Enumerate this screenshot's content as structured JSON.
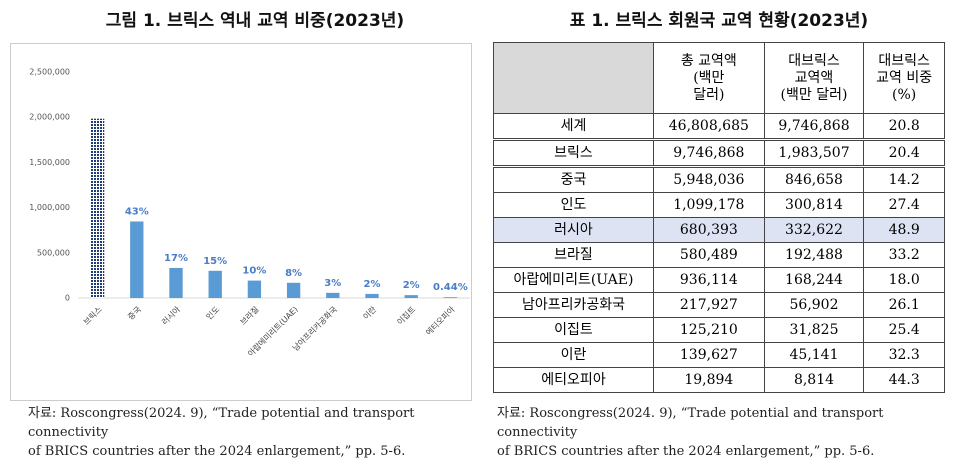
{
  "chart_data": {
    "type": "bar",
    "title": "그림 1. 브릭스 역내 교역 비중(2023년)",
    "categories": [
      "브릭스",
      "중국",
      "러시아",
      "인도",
      "브라질",
      "아랍에미리트(UAE)",
      "남아프리카공화국",
      "이란",
      "이집트",
      "에티오피아"
    ],
    "values": [
      1983507,
      846658,
      332622,
      300814,
      192488,
      168244,
      56902,
      45141,
      31825,
      8814
    ],
    "share_labels": [
      null,
      "43%",
      "17%",
      "15%",
      "10%",
      "8%",
      "3%",
      "2%",
      "2%",
      "0.44%"
    ],
    "color": "#5b9bd5",
    "first_bar_color": "#1f3c74",
    "ylim": [
      0,
      2500000
    ],
    "yticks": [
      0,
      {
        "value": 500000,
        "label": "500,000"
      },
      {
        "value": 1000000,
        "label": "1,000,000"
      },
      {
        "value": 1500000,
        "label": "1,500,000"
      },
      {
        "value": 2000000,
        "label": "2,000,000"
      },
      {
        "value": 2500000,
        "label": "2,500,000"
      }
    ],
    "grid": false,
    "source": "자료: Roscongress(2024. 9), “Trade potential and transport connectivity\nof BRICS countries after the 2024 enlargement,” pp. 5-6."
  },
  "table": {
    "title": "표 1. 브릭스 회원국 교역 현황(2023년)",
    "header": [
      "",
      "총 교역액\n(백만\n달러)",
      "대브릭스\n교역액\n(백만 달러)",
      "대브릭스\n교역 비중\n(%)"
    ],
    "rows": [
      [
        "세계",
        "46,808,685",
        "9,746,868",
        "20.8"
      ],
      [
        "브릭스",
        "9,746,868",
        "1,983,507",
        "20.4"
      ],
      [
        "중국",
        "5,948,036",
        "846,658",
        "14.2"
      ],
      [
        "인도",
        "1,099,178",
        "300,814",
        "27.4"
      ],
      [
        "러시아",
        "680,393",
        "332,622",
        "48.9"
      ],
      [
        "브라질",
        "580,489",
        "192,488",
        "33.2"
      ],
      [
        "아랍에미리트(UAE)",
        "936,114",
        "168,244",
        "18.0"
      ],
      [
        "남아프리카공화국",
        "217,927",
        "56,902",
        "26.1"
      ],
      [
        "이집트",
        "125,210",
        "31,825",
        "25.4"
      ],
      [
        "이란",
        "139,627",
        "45,141",
        "32.3"
      ],
      [
        "에티오피아",
        "19,894",
        "8,814",
        "44.3"
      ]
    ],
    "source": "자료: Roscongress(2024. 9), “Trade potential and transport connectivity\nof BRICS countries after the 2024 enlargement,” pp. 5-6."
  }
}
